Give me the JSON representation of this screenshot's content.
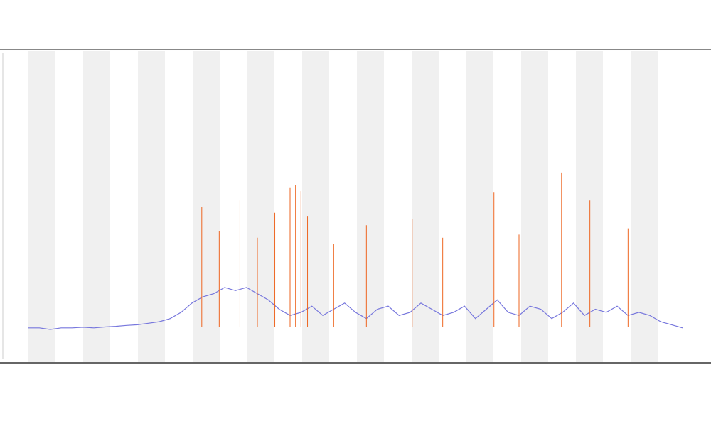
{
  "chart_data": [
    {
      "type": "line",
      "series": [
        {
          "color": "#7777dd",
          "values": [
            11,
            11,
            10.5,
            11,
            11,
            11.2,
            11,
            11.3,
            11.5,
            11.8,
            12,
            12.5,
            13,
            14,
            16,
            19,
            21,
            22,
            24,
            23,
            24,
            22,
            20,
            17,
            15,
            16,
            18,
            15,
            17,
            19,
            16,
            14,
            17,
            18,
            15,
            16,
            19,
            17,
            15,
            16,
            18,
            14,
            17,
            20,
            16,
            15,
            18,
            17,
            14,
            16,
            19,
            15,
            17,
            16,
            18,
            15,
            16,
            15,
            13,
            12,
            11
          ]
        }
      ],
      "ylim": [
        0,
        100
      ],
      "xlim": [
        0,
        60
      ]
    },
    {
      "type": "spike",
      "series": [
        {
          "color": "#ee6622",
          "x": [
            15.9,
            17.5,
            19.4,
            21,
            22.6,
            24,
            24.5,
            25,
            25.6,
            28,
            31,
            35.2,
            38,
            42.7,
            45,
            48.9,
            51.5,
            55
          ],
          "values": [
            50,
            42,
            52,
            40,
            48,
            56,
            57,
            55,
            47,
            38,
            44,
            46,
            40,
            54.5,
            41,
            61,
            52,
            43
          ]
        }
      ],
      "ylim": [
        0,
        100
      ],
      "xlim": [
        0,
        60
      ]
    }
  ]
}
